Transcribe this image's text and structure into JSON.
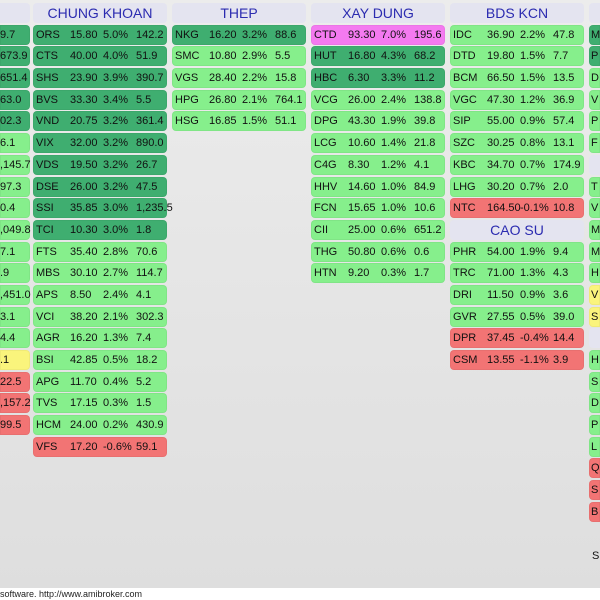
{
  "colors": {
    "dark_green": "#3fae70",
    "light_green": "#86ef8c",
    "pink": "#f47af0",
    "red": "#f27474",
    "yellow": "#faf47c",
    "header_text": "#2b2bb0"
  },
  "columns": [
    {
      "id": "left-partial",
      "groups": [
        {
          "title": "",
          "rows": [
            {
              "v": "9.7",
              "c": "dg"
            },
            {
              "v": "673.9",
              "c": "dg"
            },
            {
              "v": "651.4",
              "c": "dg"
            },
            {
              "v": "63.0",
              "c": "dg"
            },
            {
              "v": "02.3",
              "c": "dg"
            },
            {
              "v": "6.1",
              "c": "lg"
            },
            {
              "v": ",145.7",
              "c": "lg"
            },
            {
              "v": "97.3",
              "c": "lg"
            },
            {
              "v": "0.4",
              "c": "lg"
            },
            {
              "v": ",049.8",
              "c": "lg"
            },
            {
              "v": "7.1",
              "c": "lg"
            },
            {
              "v": ".9",
              "c": "lg"
            },
            {
              "v": ",451.0",
              "c": "lg"
            },
            {
              "v": "3.1",
              "c": "lg"
            },
            {
              "v": "4.4",
              "c": "lg"
            },
            {
              "v": ".1",
              "c": "yl"
            },
            {
              "v": "22.5",
              "c": "rd"
            },
            {
              "v": ",157.2",
              "c": "rd"
            },
            {
              "v": "99.5",
              "c": "rd"
            }
          ]
        }
      ]
    },
    {
      "id": "chung-khoan",
      "groups": [
        {
          "title": "CHUNG KHOAN",
          "rows": [
            {
              "t": "ORS",
              "p": "15.80",
              "ch": "5.0%",
              "v": "142.2",
              "c": "dg"
            },
            {
              "t": "CTS",
              "p": "40.00",
              "ch": "4.0%",
              "v": "51.9",
              "c": "dg"
            },
            {
              "t": "SHS",
              "p": "23.90",
              "ch": "3.9%",
              "v": "390.7",
              "c": "dg"
            },
            {
              "t": "BVS",
              "p": "33.30",
              "ch": "3.4%",
              "v": "5.5",
              "c": "dg"
            },
            {
              "t": "VND",
              "p": "20.75",
              "ch": "3.2%",
              "v": "361.4",
              "c": "dg"
            },
            {
              "t": "VIX",
              "p": "32.00",
              "ch": "3.2%",
              "v": "890.0",
              "c": "dg"
            },
            {
              "t": "VDS",
              "p": "19.50",
              "ch": "3.2%",
              "v": "26.7",
              "c": "dg"
            },
            {
              "t": "DSE",
              "p": "26.00",
              "ch": "3.2%",
              "v": "47.5",
              "c": "dg"
            },
            {
              "t": "SSI",
              "p": "35.85",
              "ch": "3.0%",
              "v": "1,235.5",
              "c": "dg"
            },
            {
              "t": "TCI",
              "p": "10.30",
              "ch": "3.0%",
              "v": "1.8",
              "c": "dg"
            },
            {
              "t": "FTS",
              "p": "35.40",
              "ch": "2.8%",
              "v": "70.6",
              "c": "lg"
            },
            {
              "t": "MBS",
              "p": "30.10",
              "ch": "2.7%",
              "v": "114.7",
              "c": "lg"
            },
            {
              "t": "APS",
              "p": "8.50",
              "ch": "2.4%",
              "v": "4.1",
              "c": "lg"
            },
            {
              "t": "VCI",
              "p": "38.20",
              "ch": "2.1%",
              "v": "302.3",
              "c": "lg"
            },
            {
              "t": "AGR",
              "p": "16.20",
              "ch": "1.3%",
              "v": "7.4",
              "c": "lg"
            },
            {
              "t": "BSI",
              "p": "42.85",
              "ch": "0.5%",
              "v": "18.2",
              "c": "lg"
            },
            {
              "t": "APG",
              "p": "11.70",
              "ch": "0.4%",
              "v": "5.2",
              "c": "lg"
            },
            {
              "t": "TVS",
              "p": "17.15",
              "ch": "0.3%",
              "v": "1.5",
              "c": "lg"
            },
            {
              "t": "HCM",
              "p": "24.00",
              "ch": "0.2%",
              "v": "430.9",
              "c": "lg"
            },
            {
              "t": "VFS",
              "p": "17.20",
              "ch": "-0.6%",
              "v": "59.1",
              "c": "rd"
            }
          ]
        }
      ]
    },
    {
      "id": "thep",
      "groups": [
        {
          "title": "THEP",
          "rows": [
            {
              "t": "NKG",
              "p": "16.20",
              "ch": "3.2%",
              "v": "88.6",
              "c": "dg"
            },
            {
              "t": "SMC",
              "p": "10.80",
              "ch": "2.9%",
              "v": "5.5",
              "c": "lg"
            },
            {
              "t": "VGS",
              "p": "28.40",
              "ch": "2.2%",
              "v": "15.8",
              "c": "lg"
            },
            {
              "t": "HPG",
              "p": "26.80",
              "ch": "2.1%",
              "v": "764.1",
              "c": "lg"
            },
            {
              "t": "HSG",
              "p": "16.85",
              "ch": "1.5%",
              "v": "51.1",
              "c": "lg"
            }
          ]
        }
      ]
    },
    {
      "id": "xay-dung",
      "groups": [
        {
          "title": "XAY DUNG",
          "rows": [
            {
              "t": "CTD",
              "p": "93.30",
              "ch": "7.0%",
              "v": "195.6",
              "c": "pk"
            },
            {
              "t": "HUT",
              "p": "16.80",
              "ch": "4.3%",
              "v": "68.2",
              "c": "dg"
            },
            {
              "t": "HBC",
              "p": "6.30",
              "ch": "3.3%",
              "v": "11.2",
              "c": "dg"
            },
            {
              "t": "VCG",
              "p": "26.00",
              "ch": "2.4%",
              "v": "138.8",
              "c": "lg"
            },
            {
              "t": "DPG",
              "p": "43.30",
              "ch": "1.9%",
              "v": "39.8",
              "c": "lg"
            },
            {
              "t": "LCG",
              "p": "10.60",
              "ch": "1.4%",
              "v": "21.8",
              "c": "lg"
            },
            {
              "t": "C4G",
              "p": "8.30",
              "ch": "1.2%",
              "v": "4.1",
              "c": "lg"
            },
            {
              "t": "HHV",
              "p": "14.60",
              "ch": "1.0%",
              "v": "84.9",
              "c": "lg"
            },
            {
              "t": "FCN",
              "p": "15.65",
              "ch": "1.0%",
              "v": "10.6",
              "c": "lg"
            },
            {
              "t": "CII",
              "p": "25.00",
              "ch": "0.6%",
              "v": "651.2",
              "c": "lg"
            },
            {
              "t": "THG",
              "p": "50.80",
              "ch": "0.6%",
              "v": "0.6",
              "c": "lg"
            },
            {
              "t": "HTN",
              "p": "9.20",
              "ch": "0.3%",
              "v": "1.7",
              "c": "lg"
            }
          ]
        }
      ]
    },
    {
      "id": "bds-kcn",
      "groups": [
        {
          "title": "BDS KCN",
          "rows": [
            {
              "t": "IDC",
              "p": "36.90",
              "ch": "2.2%",
              "v": "47.8",
              "c": "lg"
            },
            {
              "t": "DTD",
              "p": "19.80",
              "ch": "1.5%",
              "v": "7.7",
              "c": "lg"
            },
            {
              "t": "BCM",
              "p": "66.50",
              "ch": "1.5%",
              "v": "13.5",
              "c": "lg"
            },
            {
              "t": "VGC",
              "p": "47.30",
              "ch": "1.2%",
              "v": "36.9",
              "c": "lg"
            },
            {
              "t": "SIP",
              "p": "55.00",
              "ch": "0.9%",
              "v": "57.4",
              "c": "lg"
            },
            {
              "t": "SZC",
              "p": "30.25",
              "ch": "0.8%",
              "v": "13.1",
              "c": "lg"
            },
            {
              "t": "KBC",
              "p": "34.70",
              "ch": "0.7%",
              "v": "174.9",
              "c": "lg"
            },
            {
              "t": "LHG",
              "p": "30.20",
              "ch": "0.7%",
              "v": "2.0",
              "c": "lg"
            },
            {
              "t": "NTC",
              "p": "164.50",
              "ch": "-0.1%",
              "v": "10.8",
              "c": "rd"
            }
          ]
        },
        {
          "title": "CAO SU",
          "rows": [
            {
              "t": "PHR",
              "p": "54.00",
              "ch": "1.9%",
              "v": "9.4",
              "c": "lg"
            },
            {
              "t": "TRC",
              "p": "71.00",
              "ch": "1.3%",
              "v": "4.3",
              "c": "lg"
            },
            {
              "t": "DRI",
              "p": "11.50",
              "ch": "0.9%",
              "v": "3.6",
              "c": "lg"
            },
            {
              "t": "GVR",
              "p": "27.55",
              "ch": "0.5%",
              "v": "39.0",
              "c": "lg"
            },
            {
              "t": "DPR",
              "p": "37.45",
              "ch": "-0.4%",
              "v": "14.4",
              "c": "rd"
            },
            {
              "t": "CSM",
              "p": "13.55",
              "ch": "-1.1%",
              "v": "3.9",
              "c": "rd"
            }
          ]
        }
      ]
    },
    {
      "id": "right-partial",
      "groups": [
        {
          "title": "",
          "rows": [
            {
              "t": "M",
              "c": "dg"
            },
            {
              "t": "P",
              "c": "dg"
            },
            {
              "t": "D",
              "c": "lg"
            },
            {
              "t": "V",
              "c": "lg"
            },
            {
              "t": "P",
              "c": "lg"
            },
            {
              "t": "F",
              "c": "lg"
            }
          ]
        },
        {
          "title": "",
          "rows": [
            {
              "t": "T",
              "c": "lg"
            },
            {
              "t": "V",
              "c": "lg"
            },
            {
              "t": "M",
              "c": "lg"
            },
            {
              "t": "M",
              "c": "lg"
            },
            {
              "t": "H",
              "c": "lg"
            },
            {
              "t": "V",
              "c": "yl"
            },
            {
              "t": "S",
              "c": "yl"
            }
          ]
        },
        {
          "title": "",
          "rows": [
            {
              "t": "H",
              "c": "lg"
            },
            {
              "t": "S",
              "c": "lg"
            },
            {
              "t": "D",
              "c": "lg"
            },
            {
              "t": "P",
              "c": "lg"
            },
            {
              "t": "L",
              "c": "lg"
            },
            {
              "t": "Q",
              "c": "rd"
            },
            {
              "t": "S",
              "c": "rd"
            },
            {
              "t": "B",
              "c": "rd"
            }
          ]
        }
      ]
    }
  ],
  "stray_text": "S",
  "footer": "software. http://www.amibroker.com"
}
